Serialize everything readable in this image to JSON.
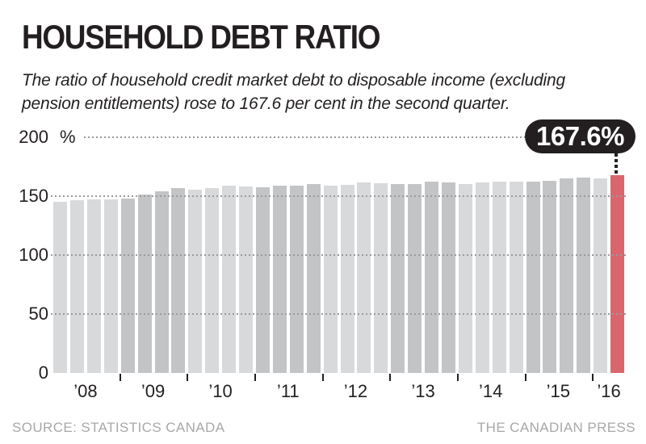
{
  "header": {
    "title": "HOUSEHOLD DEBT RATIO",
    "subtitle_line1": "The ratio of household credit market debt to disposable income (excluding",
    "subtitle_line2": "pension entitlements) rose to 167.6 per cent in the second quarter."
  },
  "chart_data": {
    "type": "bar",
    "title": "HOUSEHOLD DEBT RATIO",
    "ylabel_unit": "%",
    "ylim": [
      0,
      200
    ],
    "yticks": [
      "0",
      "50",
      "100",
      "150",
      "200"
    ],
    "grid": "dotted-horizontal",
    "years": [
      {
        "label": "’08",
        "values": [
          144.7,
          146.7,
          147.1,
          147.4
        ]
      },
      {
        "label": "’09",
        "values": [
          147.9,
          151.2,
          153.9,
          156.5
        ]
      },
      {
        "label": "’10",
        "values": [
          155.4,
          157.0,
          158.5,
          158.1
        ]
      },
      {
        "label": "’11",
        "values": [
          157.1,
          158.5,
          159.0,
          159.9
        ]
      },
      {
        "label": "’12",
        "values": [
          159.0,
          159.7,
          161.2,
          160.7
        ]
      },
      {
        "label": "’13",
        "values": [
          159.8,
          160.3,
          162.4,
          161.3
        ]
      },
      {
        "label": "’14",
        "values": [
          160.2,
          161.2,
          162.4,
          162.4
        ]
      },
      {
        "label": "’15",
        "values": [
          161.9,
          163.1,
          164.6,
          165.8
        ]
      },
      {
        "label": "’16",
        "values": [
          164.7,
          167.6
        ]
      }
    ],
    "highlight": {
      "year": "’16",
      "quarter": 2,
      "value": 167.6,
      "label": "167.6%"
    },
    "colors": {
      "bar_even_year": "#d8d9da",
      "bar_odd_year": "#c3c4c6",
      "bar_highlight": "#da666c",
      "callout_bg": "#231f20",
      "callout_text": "#ffffff",
      "gridline": "#9b9b9b",
      "footer_text": "#a8a8a8"
    }
  },
  "callout": {
    "label": "167.6%"
  },
  "footer": {
    "source": "SOURCE: STATISTICS CANADA",
    "credit": "THE CANADIAN PRESS"
  }
}
